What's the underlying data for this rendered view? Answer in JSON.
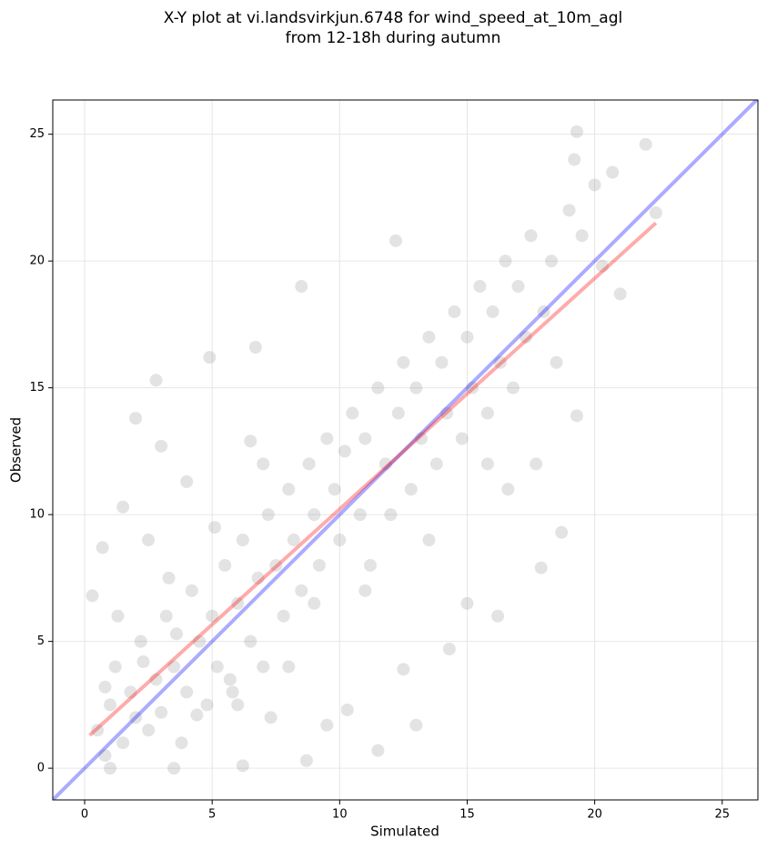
{
  "chart_data": {
    "type": "scatter",
    "title": [
      "X-Y plot at vi.landsvirkjun.6748 for wind_speed_at_10m_agl",
      "from 12-18h during autumn"
    ],
    "x_label": "Simulated",
    "y_label": "Observed",
    "xlim": [
      -1.25,
      26.4
    ],
    "ylim": [
      -1.25,
      26.35
    ],
    "xticks": [
      0,
      5,
      10,
      15,
      20,
      25
    ],
    "yticks": [
      0,
      5,
      10,
      15,
      20,
      25
    ],
    "grid": true,
    "series": [
      {
        "color": "#808080",
        "x": [
          0.5,
          0.8,
          1,
          1.2,
          1.5,
          1.8,
          2,
          2.2,
          2.5,
          2.8,
          3,
          3.2,
          3.5,
          3.8,
          4,
          4.2,
          4.5,
          4.8,
          5,
          5.2,
          5.5,
          5.8,
          6,
          6.2,
          6.5,
          6.8,
          7,
          7.2,
          7.5,
          7.8,
          8,
          8.2,
          8.5,
          8.8,
          9,
          9.2,
          9.5,
          9.8,
          10,
          10.2,
          10.5,
          10.8,
          11,
          11.2,
          11.5,
          11.8,
          12,
          12.3,
          12.5,
          12.8,
          13,
          13.2,
          13.5,
          13.8,
          14,
          14.2,
          14.5,
          14.8,
          15,
          15.2,
          15.5,
          15.8,
          16,
          16.3,
          16.5,
          16.8,
          17,
          17.3,
          17.5,
          18,
          18.3,
          18.5,
          19,
          19.2,
          19.5,
          20,
          20.3,
          20.7,
          21,
          22,
          22.4,
          19.3,
          19.3,
          18.7,
          17.9,
          16.2,
          14.3,
          13,
          11.5,
          9.5,
          8.7,
          6.2,
          3.5,
          1,
          0.3,
          0.7,
          2,
          2.8,
          4.9,
          6.7,
          8.5,
          12.2,
          3,
          1.5,
          4,
          6.5,
          5.7,
          7.3,
          10.3,
          12.5,
          15,
          15.8,
          17.7,
          16.6,
          2.5,
          3.3,
          1.3,
          0.8,
          2.3,
          4.4,
          3.6,
          5.1,
          7,
          9,
          11,
          13.5,
          8,
          6
        ],
        "y": [
          1.5,
          0.5,
          2.5,
          4,
          1,
          3,
          2,
          5,
          1.5,
          3.5,
          2.2,
          6,
          4,
          1,
          3,
          7,
          5,
          2.5,
          6,
          4,
          8,
          3,
          6.5,
          9,
          5,
          7.5,
          4,
          10,
          8,
          6,
          11,
          9,
          7,
          12,
          10,
          8,
          13,
          11,
          9,
          12.5,
          14,
          10,
          13,
          8,
          15,
          12,
          10,
          14,
          16,
          11,
          15,
          13,
          17,
          12,
          16,
          14,
          18,
          13,
          17,
          15,
          19,
          14,
          18,
          16,
          20,
          15,
          19,
          17,
          21,
          18,
          20,
          16,
          22,
          24,
          21,
          23,
          19.8,
          23.5,
          18.7,
          24.6,
          21.9,
          25.1,
          13.9,
          9.3,
          7.9,
          6,
          4.7,
          1.7,
          0.7,
          1.7,
          0.3,
          0.1,
          0,
          0,
          6.8,
          8.7,
          13.8,
          15.3,
          16.2,
          16.6,
          19,
          20.8,
          12.7,
          10.3,
          11.3,
          12.9,
          3.5,
          2,
          2.3,
          3.9,
          6.5,
          12,
          12,
          11,
          9,
          7.5,
          6,
          3.2,
          4.2,
          2.1,
          5.3,
          9.5,
          12,
          6.5,
          7,
          9,
          4,
          2.5
        ]
      }
    ],
    "lines": [
      {
        "color": "#0000ff",
        "x": [
          -1.25,
          26.4
        ],
        "y": [
          -1.25,
          26.4
        ]
      },
      {
        "color": "#ff0000",
        "x": [
          0.2,
          22.4
        ],
        "y": [
          1.3,
          21.5
        ]
      }
    ]
  }
}
